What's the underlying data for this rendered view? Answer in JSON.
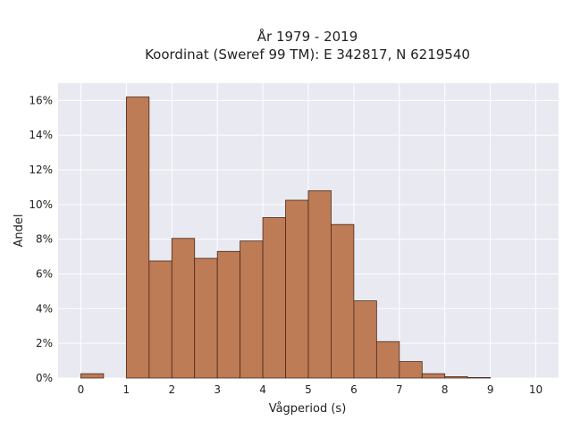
{
  "chart_data": {
    "type": "bar",
    "title": [
      "År 1979 - 2019",
      "Koordinat (Sweref 99 TM): E 342817, N 6219540"
    ],
    "xlabel": "Vågperiod (s)",
    "ylabel": "Andel",
    "xlim": [
      -0.5,
      10.5
    ],
    "ylim": [
      0,
      17
    ],
    "x_ticks": [
      0,
      1,
      2,
      3,
      4,
      5,
      6,
      7,
      8,
      9,
      10
    ],
    "y_ticks": [
      0,
      2,
      4,
      6,
      8,
      10,
      12,
      14,
      16
    ],
    "y_tick_format": "%",
    "grid": true,
    "bin_width": 0.5,
    "bins": [
      {
        "start": 0.0,
        "value": 0.25
      },
      {
        "start": 0.5,
        "value": 0.0
      },
      {
        "start": 1.0,
        "value": 16.2
      },
      {
        "start": 1.5,
        "value": 6.75
      },
      {
        "start": 2.0,
        "value": 8.05
      },
      {
        "start": 2.5,
        "value": 6.9
      },
      {
        "start": 3.0,
        "value": 7.3
      },
      {
        "start": 3.5,
        "value": 7.9
      },
      {
        "start": 4.0,
        "value": 9.25
      },
      {
        "start": 4.5,
        "value": 10.25
      },
      {
        "start": 5.0,
        "value": 10.8
      },
      {
        "start": 5.5,
        "value": 8.85
      },
      {
        "start": 6.0,
        "value": 4.45
      },
      {
        "start": 6.5,
        "value": 2.1
      },
      {
        "start": 7.0,
        "value": 0.95
      },
      {
        "start": 7.5,
        "value": 0.25
      },
      {
        "start": 8.0,
        "value": 0.08
      },
      {
        "start": 8.5,
        "value": 0.03
      }
    ],
    "colors": {
      "bar_fill": "#bd7b56",
      "bar_stroke": "#4a2a1a",
      "plot_bg": "#e8e9f1",
      "grid": "#ffffff"
    }
  }
}
